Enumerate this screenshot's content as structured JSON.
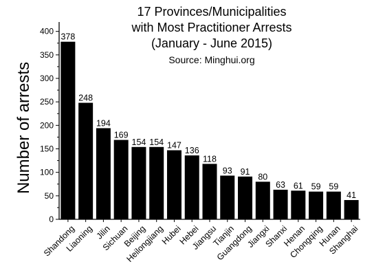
{
  "chart_data": {
    "type": "bar",
    "title_lines": [
      "17 Provinces/Municipalities",
      "with Most Practitioner Arrests",
      "(January - June 2015)"
    ],
    "subtitle": "Source: Minghui.org",
    "ylabel": "Number of arrests",
    "xlabel": "",
    "ylim": [
      0,
      420
    ],
    "yticks": [
      0,
      50,
      100,
      150,
      200,
      250,
      300,
      350,
      400
    ],
    "categories": [
      "Shandong",
      "Liaoning",
      "Jilin",
      "Sichuan",
      "Beijing",
      "Heilongjiang",
      "Hubei",
      "Hebei",
      "Jiangsu",
      "Tianjin",
      "Guangdong",
      "Jiangxi",
      "Shanxi",
      "Henan",
      "Chongqing",
      "Hunan",
      "Shanghai"
    ],
    "values": [
      378,
      248,
      194,
      169,
      154,
      154,
      147,
      136,
      118,
      93,
      91,
      80,
      63,
      61,
      59,
      59,
      41
    ],
    "bar_color": "#000000",
    "grid": false
  }
}
